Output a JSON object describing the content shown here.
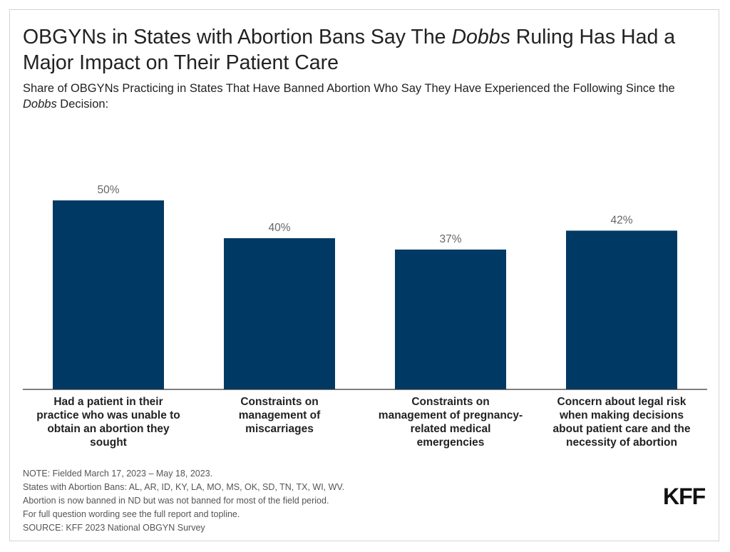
{
  "title": {
    "before": "OBGYNs in States with Abortion Bans Say The ",
    "emphasis": "Dobbs",
    "after": " Ruling Has Had a Major Impact on Their Patient Care"
  },
  "subtitle": {
    "before": "Share of OBGYNs Practicing in States That Have Banned Abortion Who Say They Have Experienced the Following Since the ",
    "emphasis": "Dobbs",
    "after": " Decision:"
  },
  "chart_data": {
    "type": "bar",
    "categories": [
      "Had a patient in their practice who was unable to obtain an abortion they sought",
      "Constraints on management of miscarriages",
      "Constraints on management of pregnancy-related medical emergencies",
      "Concern about legal risk when making decisions about patient care and the necessity of abortion"
    ],
    "category_lines": [
      [
        "Had a patient in their",
        "practice who was unable to",
        "obtain an abortion they",
        "sought"
      ],
      [
        "Constraints on",
        "management of",
        "miscarriages"
      ],
      [
        "Constraints on",
        "management of pregnancy-",
        "related medical",
        "emergencies"
      ],
      [
        "Concern about legal risk",
        "when making decisions",
        "about patient care and the",
        "necessity of abortion"
      ]
    ],
    "values": [
      50,
      40,
      37,
      42
    ],
    "value_labels": [
      "50%",
      "40%",
      "37%",
      "42%"
    ],
    "ylim": [
      0,
      60
    ],
    "grid": false,
    "bar_color": "#003a64"
  },
  "notes": [
    "NOTE: Fielded March 17, 2023 – May 18, 2023.",
    "States with Abortion Bans: AL, AR, ID, KY, LA, MO, MS, OK, SD, TN, TX, WI, WV.",
    "Abortion is now banned in ND but was not banned for most of the field period.",
    "For full question wording see the full report and topline.",
    "SOURCE: KFF 2023 National OBGYN Survey"
  ],
  "logo": "KFF"
}
